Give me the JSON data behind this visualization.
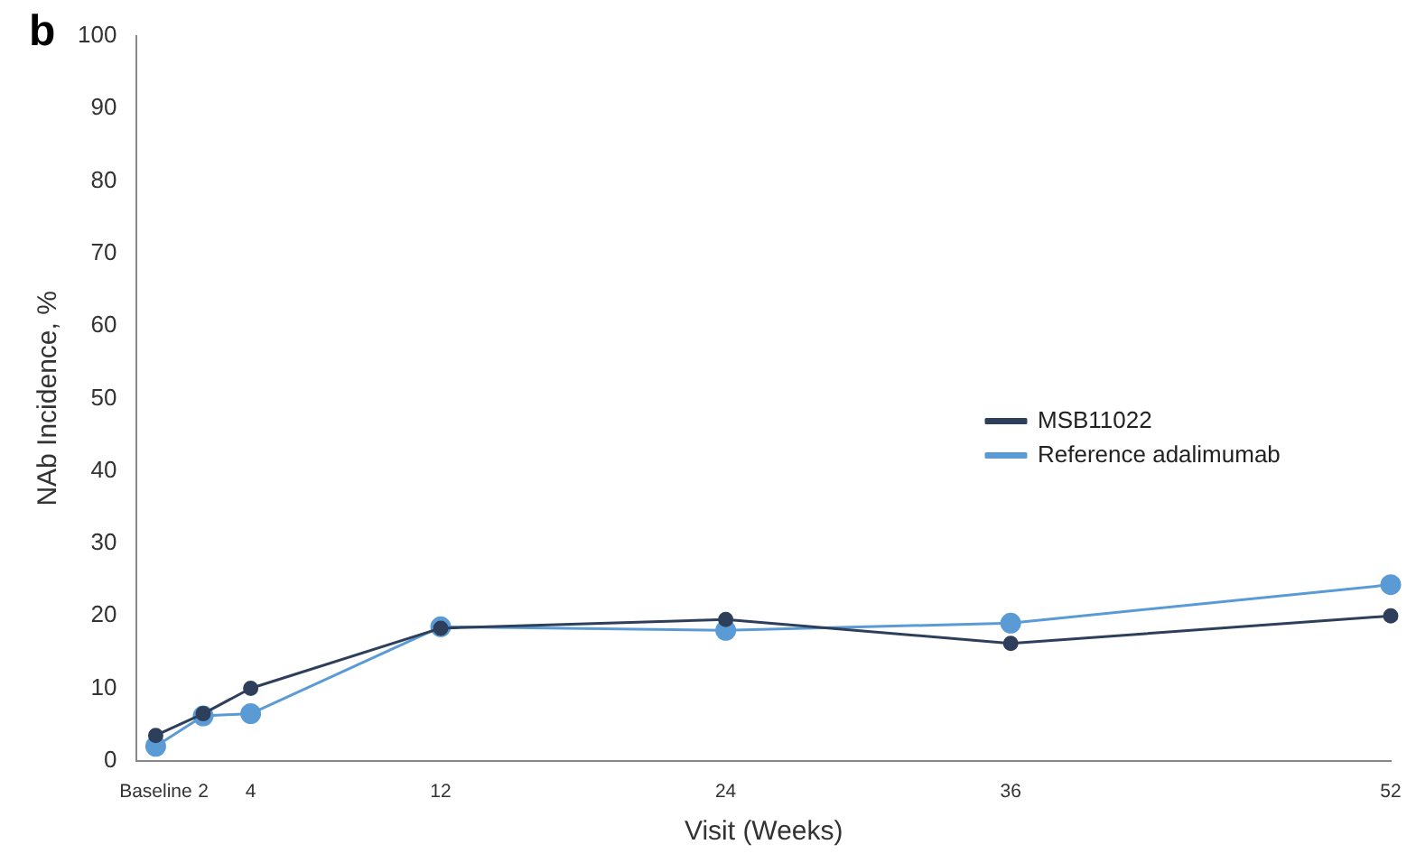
{
  "chart_data": {
    "type": "line",
    "xlabel": "Visit (Weeks)",
    "ylabel": "NAb Incidence, %",
    "annotations": [
      "b"
    ],
    "x": [
      0,
      2,
      4,
      12,
      24,
      36,
      52
    ],
    "series": [
      {
        "name": "MSB11022",
        "color": "#2e3f5c",
        "values": [
          3.5,
          6.5,
          10,
          18.3,
          19.5,
          16.2,
          20
        ]
      },
      {
        "name": "Reference adalimumab",
        "color": "#5b9bd5",
        "values": [
          2,
          6.2,
          6.5,
          18.5,
          18,
          19,
          24.3
        ]
      }
    ],
    "xlim": [
      -0.8,
      52
    ],
    "xticks": [
      {
        "value": 0,
        "label": "Baseline"
      },
      2,
      4,
      12,
      24,
      36,
      52
    ],
    "ylim": [
      0,
      100
    ],
    "yticks": [
      0,
      10,
      20,
      30,
      40,
      50,
      60,
      70,
      80,
      90,
      100
    ],
    "grid": false,
    "legend": "right",
    "marker": "circle",
    "line_style": "solid"
  }
}
